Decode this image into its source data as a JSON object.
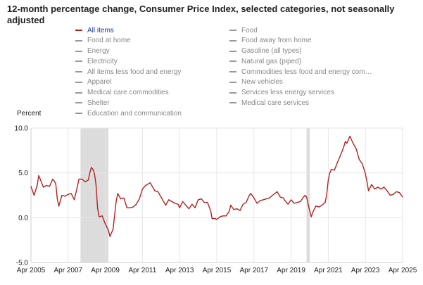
{
  "title": "12-month percentage change, Consumer Price Index, selected categories, not seasonally adjusted",
  "legend": {
    "left": [
      "All items",
      "Food at home",
      "Energy",
      "Electricity",
      "All items less food and energy",
      "Apparel",
      "Medical care commodities",
      "Shelter",
      "Education and communication"
    ],
    "right": [
      "Food",
      "Food away from home",
      "Gasoline (all types)",
      "Natural gas (piped)",
      "Commodities less food and energy com…",
      "New vehicles",
      "Services less energy services",
      "Medical care services"
    ],
    "active": "All items"
  },
  "colors": {
    "line": "#b22222",
    "recession": "#dcdcdc",
    "grid": "#e6e6e6",
    "legend_active": "#1a3a8f",
    "legend_inactive": "#999999"
  },
  "chart_data": {
    "type": "line",
    "ylabel": "Percent",
    "ylim": [
      -5,
      10
    ],
    "yticks": [
      "10.0",
      "5.0",
      "0.0",
      "-5.0"
    ],
    "xticks": [
      "Apr 2005",
      "Apr 2007",
      "Apr 2009",
      "Apr 2011",
      "Apr 2013",
      "Apr 2015",
      "Apr 2017",
      "Apr 2019",
      "Apr 2021",
      "Apr 2023",
      "Apr 2025"
    ],
    "recessions": [
      [
        "2007-12",
        "2009-06"
      ],
      [
        "2020-02",
        "2020-04"
      ]
    ],
    "series": [
      {
        "name": "All items",
        "points": [
          [
            "2005-04",
            3.5
          ],
          [
            "2005-06",
            2.5
          ],
          [
            "2005-08",
            3.6
          ],
          [
            "2005-09",
            4.7
          ],
          [
            "2005-10",
            4.3
          ],
          [
            "2005-12",
            3.4
          ],
          [
            "2006-02",
            3.6
          ],
          [
            "2006-04",
            3.5
          ],
          [
            "2006-06",
            4.3
          ],
          [
            "2006-07",
            4.1
          ],
          [
            "2006-08",
            3.8
          ],
          [
            "2006-09",
            2.1
          ],
          [
            "2006-10",
            1.3
          ],
          [
            "2006-12",
            2.5
          ],
          [
            "2007-02",
            2.4
          ],
          [
            "2007-04",
            2.6
          ],
          [
            "2007-06",
            2.7
          ],
          [
            "2007-08",
            2.0
          ],
          [
            "2007-10",
            3.5
          ],
          [
            "2007-11",
            4.3
          ],
          [
            "2008-01",
            4.3
          ],
          [
            "2008-03",
            4.0
          ],
          [
            "2008-05",
            4.2
          ],
          [
            "2008-06",
            5.0
          ],
          [
            "2008-07",
            5.6
          ],
          [
            "2008-08",
            5.4
          ],
          [
            "2008-09",
            4.9
          ],
          [
            "2008-10",
            3.7
          ],
          [
            "2008-11",
            1.1
          ],
          [
            "2008-12",
            0.1
          ],
          [
            "2009-02",
            0.2
          ],
          [
            "2009-04",
            -0.7
          ],
          [
            "2009-06",
            -1.4
          ],
          [
            "2009-07",
            -2.1
          ],
          [
            "2009-09",
            -1.3
          ],
          [
            "2009-11",
            1.8
          ],
          [
            "2009-12",
            2.7
          ],
          [
            "2010-02",
            2.1
          ],
          [
            "2010-04",
            2.2
          ],
          [
            "2010-06",
            1.1
          ],
          [
            "2010-08",
            1.1
          ],
          [
            "2010-10",
            1.2
          ],
          [
            "2010-12",
            1.5
          ],
          [
            "2011-02",
            2.1
          ],
          [
            "2011-04",
            3.2
          ],
          [
            "2011-06",
            3.6
          ],
          [
            "2011-09",
            3.9
          ],
          [
            "2011-12",
            3.0
          ],
          [
            "2012-02",
            2.9
          ],
          [
            "2012-04",
            2.3
          ],
          [
            "2012-06",
            1.7
          ],
          [
            "2012-07",
            1.4
          ],
          [
            "2012-09",
            2.0
          ],
          [
            "2012-11",
            1.8
          ],
          [
            "2013-01",
            1.6
          ],
          [
            "2013-03",
            1.5
          ],
          [
            "2013-04",
            1.1
          ],
          [
            "2013-06",
            1.8
          ],
          [
            "2013-09",
            1.2
          ],
          [
            "2013-10",
            1.0
          ],
          [
            "2013-12",
            1.5
          ],
          [
            "2014-02",
            1.1
          ],
          [
            "2014-04",
            2.0
          ],
          [
            "2014-06",
            2.1
          ],
          [
            "2014-08",
            1.7
          ],
          [
            "2014-10",
            1.7
          ],
          [
            "2014-12",
            0.8
          ],
          [
            "2015-01",
            -0.1
          ],
          [
            "2015-03",
            -0.1
          ],
          [
            "2015-04",
            -0.2
          ],
          [
            "2015-06",
            0.1
          ],
          [
            "2015-08",
            0.2
          ],
          [
            "2015-10",
            0.2
          ],
          [
            "2015-12",
            0.7
          ],
          [
            "2016-01",
            1.4
          ],
          [
            "2016-03",
            0.9
          ],
          [
            "2016-05",
            1.0
          ],
          [
            "2016-07",
            0.8
          ],
          [
            "2016-09",
            1.5
          ],
          [
            "2016-11",
            1.7
          ],
          [
            "2017-01",
            2.5
          ],
          [
            "2017-02",
            2.7
          ],
          [
            "2017-04",
            2.2
          ],
          [
            "2017-06",
            1.6
          ],
          [
            "2017-08",
            1.9
          ],
          [
            "2017-10",
            2.0
          ],
          [
            "2017-12",
            2.1
          ],
          [
            "2018-02",
            2.2
          ],
          [
            "2018-04",
            2.5
          ],
          [
            "2018-07",
            2.9
          ],
          [
            "2018-09",
            2.3
          ],
          [
            "2018-11",
            2.2
          ],
          [
            "2018-12",
            1.9
          ],
          [
            "2019-02",
            1.5
          ],
          [
            "2019-04",
            2.0
          ],
          [
            "2019-06",
            1.6
          ],
          [
            "2019-08",
            1.7
          ],
          [
            "2019-10",
            1.8
          ],
          [
            "2019-12",
            2.3
          ],
          [
            "2020-01",
            2.5
          ],
          [
            "2020-02",
            2.3
          ],
          [
            "2020-03",
            1.5
          ],
          [
            "2020-05",
            0.1
          ],
          [
            "2020-06",
            0.6
          ],
          [
            "2020-08",
            1.3
          ],
          [
            "2020-10",
            1.2
          ],
          [
            "2020-12",
            1.4
          ],
          [
            "2021-02",
            1.7
          ],
          [
            "2021-03",
            2.6
          ],
          [
            "2021-04",
            4.2
          ],
          [
            "2021-05",
            5.0
          ],
          [
            "2021-06",
            5.4
          ],
          [
            "2021-08",
            5.3
          ],
          [
            "2021-10",
            6.2
          ],
          [
            "2021-12",
            7.0
          ],
          [
            "2022-02",
            7.9
          ],
          [
            "2022-03",
            8.5
          ],
          [
            "2022-04",
            8.3
          ],
          [
            "2022-06",
            9.1
          ],
          [
            "2022-08",
            8.3
          ],
          [
            "2022-10",
            7.7
          ],
          [
            "2022-12",
            6.5
          ],
          [
            "2023-02",
            6.0
          ],
          [
            "2023-04",
            4.9
          ],
          [
            "2023-05",
            4.0
          ],
          [
            "2023-06",
            3.0
          ],
          [
            "2023-08",
            3.7
          ],
          [
            "2023-10",
            3.2
          ],
          [
            "2023-12",
            3.4
          ],
          [
            "2024-02",
            3.2
          ],
          [
            "2024-04",
            3.4
          ],
          [
            "2024-06",
            3.0
          ],
          [
            "2024-08",
            2.5
          ],
          [
            "2024-10",
            2.6
          ],
          [
            "2024-12",
            2.9
          ],
          [
            "2025-02",
            2.8
          ],
          [
            "2025-04",
            2.3
          ]
        ]
      }
    ],
    "grid": true,
    "legend_position": "top"
  }
}
